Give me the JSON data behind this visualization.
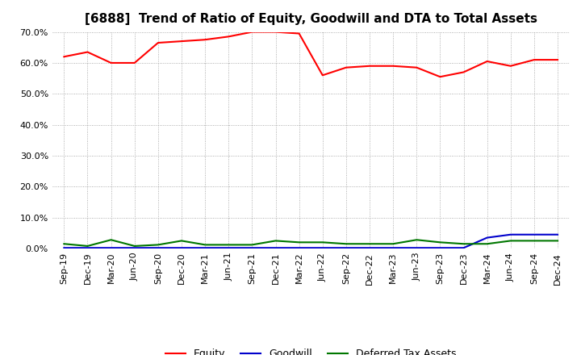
{
  "title": "[6888]  Trend of Ratio of Equity, Goodwill and DTA to Total Assets",
  "x_labels": [
    "Sep-19",
    "Dec-19",
    "Mar-20",
    "Jun-20",
    "Sep-20",
    "Dec-20",
    "Mar-21",
    "Jun-21",
    "Sep-21",
    "Dec-21",
    "Mar-22",
    "Jun-22",
    "Sep-22",
    "Dec-22",
    "Mar-23",
    "Jun-23",
    "Sep-23",
    "Dec-23",
    "Mar-24",
    "Jun-24",
    "Sep-24",
    "Dec-24"
  ],
  "equity": [
    62.0,
    63.5,
    60.0,
    60.0,
    66.5,
    67.0,
    67.5,
    68.5,
    70.0,
    70.0,
    69.5,
    56.0,
    58.5,
    59.0,
    59.0,
    58.5,
    55.5,
    57.0,
    60.5,
    59.0,
    61.0,
    61.0
  ],
  "goodwill": [
    0.2,
    0.2,
    0.2,
    0.2,
    0.2,
    0.2,
    0.2,
    0.2,
    0.2,
    0.2,
    0.2,
    0.2,
    0.2,
    0.2,
    0.2,
    0.2,
    0.2,
    0.2,
    3.5,
    4.5,
    4.5,
    4.5
  ],
  "dta": [
    1.5,
    0.8,
    2.8,
    0.8,
    1.2,
    2.5,
    1.2,
    1.2,
    1.2,
    2.5,
    2.0,
    2.0,
    1.5,
    1.5,
    1.5,
    2.8,
    2.0,
    1.5,
    1.5,
    2.5,
    2.5,
    2.5
  ],
  "equity_color": "#ff0000",
  "goodwill_color": "#0000cc",
  "dta_color": "#007700",
  "ylim": [
    0,
    70
  ],
  "yticks": [
    0,
    10,
    20,
    30,
    40,
    50,
    60,
    70
  ],
  "background_color": "#ffffff",
  "grid_color": "#999999",
  "title_fontsize": 11,
  "tick_fontsize": 8,
  "legend_fontsize": 9
}
